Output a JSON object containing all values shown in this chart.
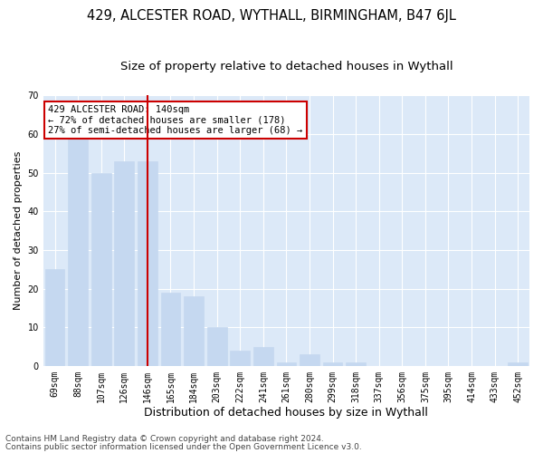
{
  "title1": "429, ALCESTER ROAD, WYTHALL, BIRMINGHAM, B47 6JL",
  "title2": "Size of property relative to detached houses in Wythall",
  "xlabel": "Distribution of detached houses by size in Wythall",
  "ylabel": "Number of detached properties",
  "categories": [
    "69sqm",
    "88sqm",
    "107sqm",
    "126sqm",
    "146sqm",
    "165sqm",
    "184sqm",
    "203sqm",
    "222sqm",
    "241sqm",
    "261sqm",
    "280sqm",
    "299sqm",
    "318sqm",
    "337sqm",
    "356sqm",
    "375sqm",
    "395sqm",
    "414sqm",
    "433sqm",
    "452sqm"
  ],
  "values": [
    25,
    59,
    50,
    53,
    53,
    19,
    18,
    10,
    4,
    5,
    1,
    3,
    1,
    1,
    0,
    0,
    0,
    0,
    0,
    0,
    1
  ],
  "bar_color": "#c5d8f0",
  "bar_edgecolor": "#c5d8f0",
  "vline_x": 4,
  "vline_color": "#cc0000",
  "annotation_text": "429 ALCESTER ROAD: 140sqm\n← 72% of detached houses are smaller (178)\n27% of semi-detached houses are larger (68) →",
  "annotation_box_color": "#ffffff",
  "annotation_box_edgecolor": "#cc0000",
  "ylim": [
    0,
    70
  ],
  "yticks": [
    0,
    10,
    20,
    30,
    40,
    50,
    60,
    70
  ],
  "footer1": "Contains HM Land Registry data © Crown copyright and database right 2024.",
  "footer2": "Contains public sector information licensed under the Open Government Licence v3.0.",
  "background_color": "#ffffff",
  "plot_background": "#dce9f8",
  "grid_color": "#ffffff",
  "title1_fontsize": 10.5,
  "title2_fontsize": 9.5,
  "xlabel_fontsize": 9,
  "ylabel_fontsize": 8,
  "tick_fontsize": 7,
  "footer_fontsize": 6.5,
  "annot_fontsize": 7.5
}
